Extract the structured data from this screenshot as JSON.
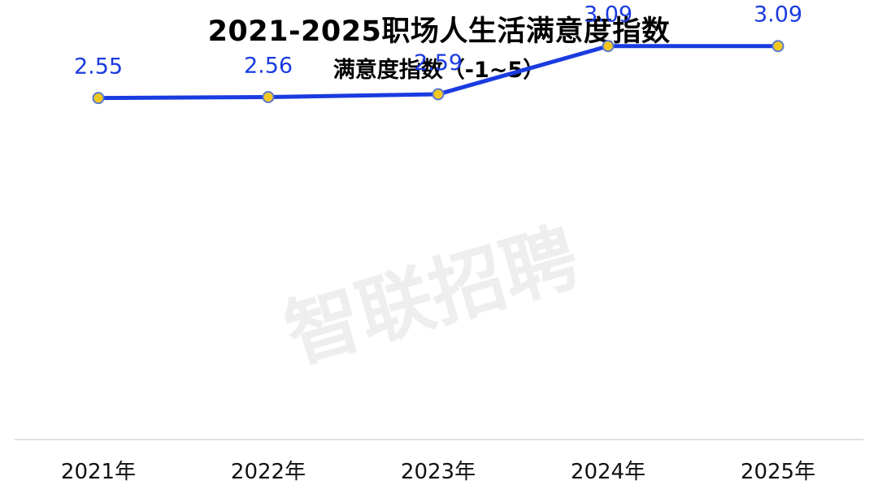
{
  "chart_data": {
    "type": "line",
    "title": "2021-2025职场人生活满意度指数",
    "subtitle": "满意度指数（-1~5）",
    "categories": [
      "2021年",
      "2022年",
      "2023年",
      "2024年",
      "2025年"
    ],
    "series": [
      {
        "values": [
          2.55,
          2.56,
          2.59,
          3.09,
          3.09
        ],
        "data_labels": [
          "2.55",
          "2.56",
          "2.59",
          "3.09",
          "3.09"
        ]
      }
    ],
    "ylim": [
      -1,
      5
    ],
    "xlabel": "",
    "ylabel": "",
    "grid": false,
    "legend": "none",
    "watermark": "智联招聘",
    "colors": {
      "line": "#1a3be0",
      "marker_fill": "#f2c81e",
      "marker_stroke": "#5b78d0",
      "drop_line": "#f5dc55",
      "data_label": "#1a3be0",
      "axis": "#d9d9d9",
      "watermark": "#eeeeee"
    }
  }
}
